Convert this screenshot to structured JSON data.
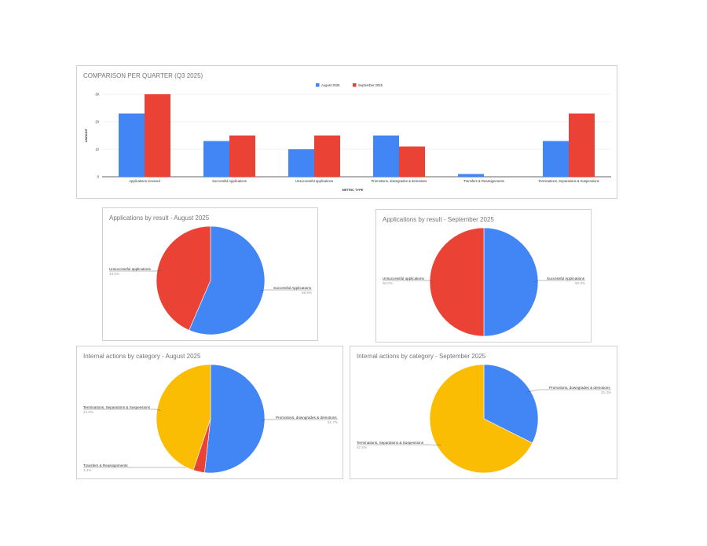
{
  "chart_data": [
    {
      "type": "bar",
      "title": "COMPARISON PER QUARTER (Q3 2025)",
      "xlabel": "METRIC TYPE",
      "ylabel": "AMOUNT",
      "ylim": [
        0,
        30
      ],
      "yticks": [
        "0",
        "10",
        "20",
        "30"
      ],
      "grid": true,
      "legend_position": "top",
      "categories": [
        "Applications received",
        "Successful Applications",
        "Unsuccessful applications",
        "Promotions, downgrades & demotions",
        "Transfers & Reassignments",
        "Terminations, Separations & Suspensions"
      ],
      "series": [
        {
          "name": "August 2025",
          "color": "#4285f4",
          "values": [
            23,
            13,
            10,
            15,
            1,
            13
          ]
        },
        {
          "name": "September 2025",
          "color": "#ea4335",
          "values": [
            30,
            15,
            15,
            11,
            0,
            23
          ]
        }
      ]
    },
    {
      "type": "pie",
      "title": "Applications by result - August 2025",
      "slices": [
        {
          "label": "Successful Applications",
          "value": 56.5,
          "pct": "56.5%",
          "color": "#4285f4"
        },
        {
          "label": "Unsuccessful applications",
          "value": 43.5,
          "pct": "43.5%",
          "color": "#ea4335"
        }
      ]
    },
    {
      "type": "pie",
      "title": "Applications by result - September 2025",
      "slices": [
        {
          "label": "Successful Applications",
          "value": 50,
          "pct": "50.0%",
          "color": "#4285f4"
        },
        {
          "label": "Unsuccessful applications",
          "value": 50,
          "pct": "50.0%",
          "color": "#ea4335"
        }
      ]
    },
    {
      "type": "pie",
      "title": "Internal actions by category - August 2025",
      "slices": [
        {
          "label": "Promotions, downgrades & demotions",
          "value": 51.7,
          "pct": "51.7%",
          "color": "#4285f4"
        },
        {
          "label": "Transfers & Reassignments",
          "value": 3.4,
          "pct": "3.4%",
          "color": "#ea4335"
        },
        {
          "label": "Terminations, Separations & Suspensions",
          "value": 44.8,
          "pct": "44.8%",
          "color": "#fbbc04"
        }
      ]
    },
    {
      "type": "pie",
      "title": "Internal actions by category - September 2025",
      "slices": [
        {
          "label": "Promotions, downgrades & demotions",
          "value": 32.4,
          "pct": "32.4%",
          "color": "#4285f4"
        },
        {
          "label": "Terminations, Separations & Suspensions",
          "value": 67.6,
          "pct": "67.6%",
          "color": "#fbbc04"
        }
      ]
    }
  ]
}
